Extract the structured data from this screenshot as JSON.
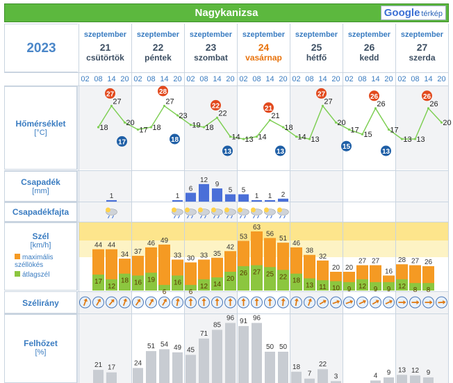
{
  "header": {
    "title": "Nagykanizsa",
    "logo_text": "Google",
    "logo_suffix": "térkép"
  },
  "year": "2023",
  "days": [
    {
      "month": "szeptember",
      "day": "21",
      "name": "csütörtök",
      "highlight": false
    },
    {
      "month": "szeptember",
      "day": "22",
      "name": "péntek",
      "highlight": false
    },
    {
      "month": "szeptember",
      "day": "23",
      "name": "szombat",
      "highlight": false
    },
    {
      "month": "szeptember",
      "day": "24",
      "name": "vasárnap",
      "highlight": true
    },
    {
      "month": "szeptember",
      "day": "25",
      "name": "hétfő",
      "highlight": false
    },
    {
      "month": "szeptember",
      "day": "26",
      "name": "kedd",
      "highlight": false
    },
    {
      "month": "szeptember",
      "day": "27",
      "name": "szerda",
      "highlight": false
    }
  ],
  "hours": [
    "02",
    "08",
    "14",
    "20"
  ],
  "rows": {
    "temp": {
      "label": "Hőmérséklet",
      "unit": "[°C]"
    },
    "precip": {
      "label": "Csapadék",
      "unit": "[mm]"
    },
    "ptype": {
      "label": "Csapadékfajta"
    },
    "wind": {
      "label": "Szél",
      "unit": "[km/h]",
      "legend_gust": "maximális széllökés",
      "legend_avg": "átlagszél"
    },
    "winddir": {
      "label": "Szélirány"
    },
    "cloud": {
      "label": "Felhőzet",
      "unit": "[%]"
    }
  },
  "colors": {
    "gust": "#f59a23",
    "avg": "#8cc63f",
    "precip": "#4a6fd8",
    "cloud": "#c8ccd2",
    "temp_line": "#7fcf55",
    "max_badge": "#e24a1e",
    "min_badge": "#1f5fa6"
  },
  "chart_data": [
    {
      "type": "line",
      "name": "temperature",
      "values": [
        18,
        27,
        20,
        17,
        18,
        27,
        23,
        19,
        18,
        22,
        14,
        13,
        14,
        21,
        18,
        14,
        13,
        27,
        20,
        17,
        15,
        26,
        17,
        13,
        13,
        26,
        20
      ],
      "max_badges": [
        27,
        28,
        22,
        21,
        27,
        26,
        26
      ],
      "min_badges": [
        17,
        18,
        13,
        13,
        15,
        13
      ]
    },
    {
      "type": "bar",
      "name": "precipitation",
      "labels": [
        "1",
        "1",
        "6",
        "12",
        "9",
        "5",
        "5",
        "1",
        "1",
        "2"
      ],
      "values": [
        1,
        1,
        6,
        12,
        9,
        5,
        5,
        1,
        1,
        2
      ]
    },
    {
      "type": "bar",
      "name": "wind",
      "series": [
        {
          "name": "maximális széllökés",
          "values": [
            44,
            44,
            34,
            37,
            46,
            49,
            33,
            30,
            33,
            35,
            42,
            53,
            63,
            56,
            51,
            46,
            38,
            32,
            20,
            20,
            27,
            27,
            16,
            28,
            27,
            26
          ]
        },
        {
          "name": "átlagszél",
          "values": [
            17,
            12,
            18,
            16,
            19,
            6,
            16,
            6,
            12,
            14,
            20,
            26,
            27,
            25,
            22,
            18,
            13,
            11,
            10,
            9,
            12,
            9,
            9,
            12,
            8,
            8
          ]
        }
      ]
    },
    {
      "type": "bar",
      "name": "cloud",
      "values": [
        21,
        17,
        0,
        24,
        51,
        54,
        49,
        45,
        71,
        85,
        96,
        91,
        96,
        50,
        50,
        18,
        7,
        22,
        3,
        0,
        0,
        4,
        9,
        13,
        12,
        9
      ]
    }
  ]
}
